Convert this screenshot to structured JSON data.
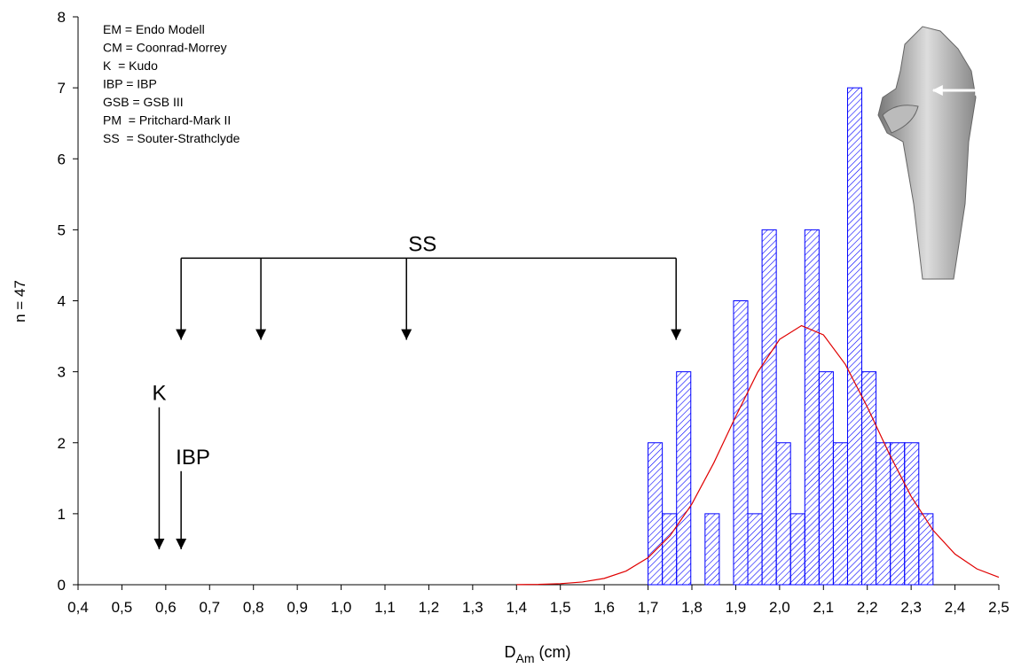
{
  "chart_data": {
    "type": "histogram",
    "bins": [
      1.7,
      1.7325,
      1.765,
      1.7975,
      1.83,
      1.8625,
      1.895,
      1.9275,
      1.96,
      1.9925,
      2.025,
      2.0575,
      2.09,
      2.1225,
      2.155,
      2.1875,
      2.22,
      2.2525,
      2.285,
      2.3175,
      2.35
    ],
    "counts": [
      2,
      1,
      3,
      0,
      1,
      0,
      4,
      1,
      5,
      2,
      1,
      5,
      3,
      2,
      7,
      3,
      2,
      2,
      2,
      1
    ],
    "color": "#0000ff",
    "curve": {
      "color": "#e00000",
      "x": [
        1.4,
        1.45,
        1.5,
        1.55,
        1.6,
        1.65,
        1.7,
        1.75,
        1.8,
        1.85,
        1.9,
        1.95,
        2.0,
        2.05,
        2.1,
        2.15,
        2.2,
        2.25,
        2.3,
        2.35,
        2.4,
        2.45,
        2.5
      ],
      "values": [
        0.002,
        0.005,
        0.015,
        0.038,
        0.089,
        0.193,
        0.381,
        0.689,
        1.138,
        1.717,
        2.372,
        2.994,
        3.457,
        3.65,
        3.52,
        3.104,
        2.504,
        1.846,
        1.244,
        0.767,
        0.432,
        0.223,
        0.105
      ]
    },
    "xlim": [
      0.4,
      2.5
    ],
    "ylim": [
      0,
      8
    ],
    "xticks": [
      {
        "value": 0.4,
        "label": "0,4"
      },
      {
        "value": 0.5,
        "label": "0,5"
      },
      {
        "value": 0.6,
        "label": "0,6"
      },
      {
        "value": 0.7,
        "label": "0,7"
      },
      {
        "value": 0.8,
        "label": "0,8"
      },
      {
        "value": 0.9,
        "label": "0,9"
      },
      {
        "value": 1.0,
        "label": "1,0"
      },
      {
        "value": 1.1,
        "label": "1,1"
      },
      {
        "value": 1.2,
        "label": "1,2"
      },
      {
        "value": 1.3,
        "label": "1,3"
      },
      {
        "value": 1.4,
        "label": "1,4"
      },
      {
        "value": 1.5,
        "label": "1,5"
      },
      {
        "value": 1.6,
        "label": "1,6"
      },
      {
        "value": 1.7,
        "label": "1,7"
      },
      {
        "value": 1.8,
        "label": "1,8"
      },
      {
        "value": 1.9,
        "label": "1,9"
      },
      {
        "value": 2.0,
        "label": "2,0"
      },
      {
        "value": 2.1,
        "label": "2,1"
      },
      {
        "value": 2.2,
        "label": "2,2"
      },
      {
        "value": 2.3,
        "label": "2,3"
      },
      {
        "value": 2.4,
        "label": "2,4"
      },
      {
        "value": 2.5,
        "label": "2,5"
      }
    ],
    "yticks": [
      0,
      1,
      2,
      3,
      4,
      5,
      6,
      7,
      8
    ],
    "ylabel": "n = 47",
    "xlabel": {
      "main": "D",
      "sub": "Am",
      "rest": " (cm)"
    },
    "legend_lines": [
      "EM = Endo Modell",
      "CM = Coonrad-Morrey",
      "K  = Kudo",
      "IBP = IBP",
      "GSB = GSB III",
      "PM  = Pritchard-Mark II",
      "SS  = Souter-Strathclyde"
    ],
    "markers": [
      {
        "text": "K",
        "x": 0.585
      },
      {
        "text": "IBP",
        "x": 0.635
      }
    ],
    "ss_group": {
      "text": "SS",
      "x": [
        0.635,
        0.817,
        1.149,
        1.764
      ]
    }
  }
}
